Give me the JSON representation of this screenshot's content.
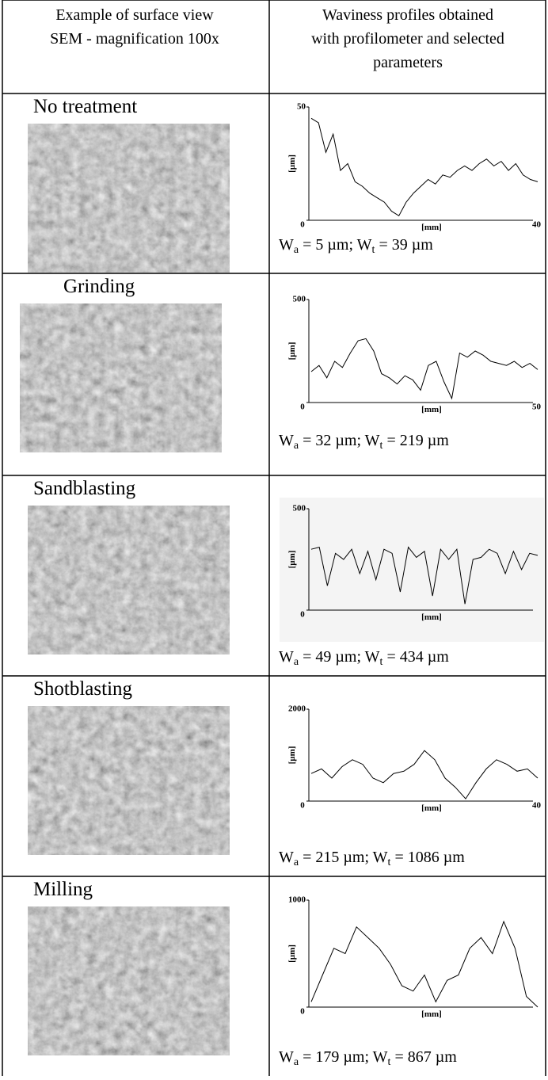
{
  "header": {
    "left": [
      "Example of surface view",
      "SEM - magnification  100x"
    ],
    "right": [
      "Waviness profiles obtained",
      "with profilometer and selected",
      "parameters"
    ]
  },
  "rows": [
    {
      "treatment": "No treatment",
      "profile": {
        "ylabel": "[µm]",
        "xlabel": "[mm]",
        "ylim": [
          0,
          50
        ],
        "yticks": [
          0,
          50
        ],
        "xticks": [
          0,
          40
        ],
        "values": [
          45,
          43,
          30,
          38,
          22,
          25,
          17,
          15,
          12,
          10,
          8,
          4,
          2,
          8,
          12,
          15,
          18,
          16,
          20,
          19,
          22,
          24,
          22,
          25,
          27,
          24,
          26,
          22,
          25,
          20,
          18,
          17
        ]
      },
      "params": [
        "W",
        "a",
        " = 5 µm; W",
        "t",
        " = 39 µm"
      ]
    },
    {
      "treatment": "Grinding",
      "profile": {
        "ylabel": "[µm]",
        "xlabel": "[mm]",
        "ylim": [
          0,
          500
        ],
        "yticks": [
          0,
          500
        ],
        "xticks": [
          0,
          50
        ],
        "values": [
          150,
          180,
          120,
          200,
          170,
          240,
          300,
          310,
          250,
          140,
          120,
          90,
          130,
          110,
          60,
          180,
          200,
          100,
          20,
          240,
          220,
          250,
          230,
          200,
          190,
          180,
          200,
          170,
          190,
          160
        ]
      },
      "params": [
        "W",
        "a",
        " = 32 µm; W",
        "t",
        " = 219 µm"
      ]
    },
    {
      "treatment": "Sandblasting",
      "profile": {
        "ylabel": "[µm]",
        "xlabel": "[mm]",
        "ylim": [
          0,
          500
        ],
        "yticks": [
          0,
          500
        ],
        "xticks": [
          0
        ],
        "values": [
          300,
          310,
          120,
          280,
          250,
          300,
          180,
          290,
          150,
          300,
          280,
          90,
          310,
          260,
          290,
          70,
          300,
          250,
          300,
          30,
          250,
          260,
          300,
          280,
          180,
          290,
          200,
          280,
          270
        ]
      },
      "params": [
        "W",
        "a",
        " = 49 µm; W",
        "t",
        " = 434 µm"
      ]
    },
    {
      "treatment": "Shotblasting",
      "profile": {
        "ylabel": "[µm]",
        "xlabel": "[mm]",
        "ylim": [
          0,
          2000
        ],
        "yticks": [
          0,
          2000
        ],
        "xticks": [
          0,
          40
        ],
        "values": [
          600,
          700,
          500,
          750,
          900,
          800,
          500,
          400,
          600,
          650,
          800,
          1100,
          900,
          500,
          300,
          50,
          400,
          700,
          900,
          800,
          650,
          700,
          500
        ]
      },
      "params": [
        "W",
        "a",
        " = 215 µm; W",
        "t",
        " = 1086 µm"
      ]
    },
    {
      "treatment": "Milling",
      "profile": {
        "ylabel": "[µm]",
        "xlabel": "[mm]",
        "ylim": [
          0,
          1000
        ],
        "yticks": [
          0,
          1000
        ],
        "xticks": [
          0
        ],
        "values": [
          50,
          300,
          550,
          500,
          750,
          650,
          550,
          400,
          200,
          150,
          300,
          50,
          250,
          300,
          550,
          650,
          500,
          800,
          550,
          100,
          0
        ]
      },
      "params": [
        "W",
        "a",
        " = 179 µm; W",
        "t",
        " = 867 µm"
      ]
    }
  ]
}
